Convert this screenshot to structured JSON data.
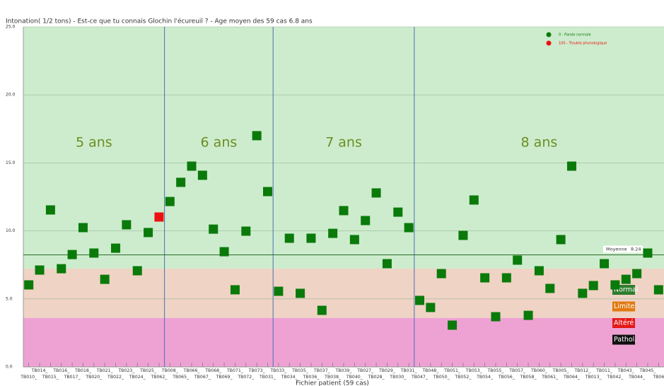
{
  "chart_data": {
    "type": "scatter",
    "title": "Intonation( 1/2 tons) - Est-ce que tu connais Glochin l'écureuil ? - Age moyen des 59 cas 6.8 ans",
    "x_label": "Fichier patient (59 cas)",
    "categories": [
      "TB010_",
      "TB014_",
      "TB015_",
      "TB016_",
      "TB017_",
      "TB018_",
      "TB020_",
      "TB021_",
      "TB022_",
      "TB023_",
      "TB024_",
      "TB025_",
      "TB062_",
      "TB008_",
      "TB065_",
      "TB066_",
      "TB067_",
      "TB068_",
      "TB069_",
      "TB071_",
      "TB072_",
      "TB073_",
      "TB031_",
      "TB033_",
      "TB034_",
      "TB035_",
      "TB036_",
      "TB037_",
      "TB038_",
      "TB039_",
      "TB040_",
      "TB027_",
      "TB028_",
      "TB029_",
      "TB030_",
      "TB031_",
      "TB047_",
      "TB048_",
      "TB050_",
      "TB051_",
      "TB052_",
      "TB053_",
      "TB054_",
      "TB055_",
      "TB056_",
      "TB057_",
      "TB058_",
      "TB060_",
      "TB061_",
      "TB005_",
      "TB064_",
      "TB012_",
      "TB013_",
      "TB011_",
      "TB042_",
      "TB043_",
      "TB044_",
      "TB045_",
      "TB06"
    ],
    "series": [
      {
        "name": "0 -  Parole normale",
        "color": "#0a7a0a",
        "values": [
          6.03,
          7.12,
          11.54,
          7.22,
          8.26,
          10.24,
          8.37,
          6.44,
          8.73,
          10.45,
          7.07,
          9.88,
          null,
          12.16,
          13.57,
          14.76,
          14.09,
          10.13,
          8.47,
          5.67,
          9.98,
          17.0,
          12.89,
          5.56,
          9.46,
          5.41,
          9.46,
          4.16,
          9.82,
          11.49,
          9.36,
          10.76,
          12.79,
          7.59,
          11.38,
          10.24,
          4.89,
          4.37,
          6.86,
          3.07,
          9.67,
          12.27,
          6.55,
          3.69,
          6.55,
          7.85,
          3.79,
          7.07,
          5.77,
          9.36,
          14.76,
          5.41,
          5.98,
          7.59,
          6.03,
          6.44,
          6.86,
          8.37,
          5.67
        ]
      },
      {
        "name": "100 -  Trouble phonologique",
        "color": "#ee1111",
        "values": [
          null,
          null,
          null,
          null,
          null,
          null,
          null,
          null,
          null,
          null,
          null,
          null,
          11.02,
          null,
          null,
          null,
          null,
          null,
          null,
          null,
          null,
          null,
          null,
          null,
          null,
          null,
          null,
          null,
          null,
          null,
          null,
          null,
          null,
          null,
          null,
          null,
          null,
          null,
          null,
          null,
          null,
          null,
          null,
          null,
          null,
          null,
          null,
          null,
          null,
          null,
          null,
          null,
          null,
          null,
          null,
          null,
          null,
          null,
          null
        ]
      }
    ],
    "ylim": [
      0,
      25
    ],
    "yticks": [
      {
        "value": 0,
        "label": "0.0"
      },
      {
        "value": 5,
        "label": "5.0"
      },
      {
        "value": 10,
        "label": "10.0"
      },
      {
        "value": 15,
        "label": "15.0"
      },
      {
        "value": 20,
        "label": "20.0"
      },
      {
        "value": 25,
        "label": "25.0"
      }
    ],
    "bands": [
      {
        "from": 7.22,
        "to": 25,
        "color": "#cdeccd"
      },
      {
        "from": 3.6,
        "to": 7.22,
        "color": "#efd3c4"
      },
      {
        "from": 0,
        "to": 3.6,
        "color": "#eea2d4"
      }
    ],
    "zone_labels": [
      {
        "label": "Normal",
        "color": "#2e7d2e"
      },
      {
        "label": "Limite",
        "color": "#e07a10"
      },
      {
        "label": "Altéré",
        "color": "#e41818"
      },
      {
        "label": "Pathol.",
        "color": "#111111"
      }
    ],
    "sections": [
      {
        "label": "5 ans",
        "count": 13
      },
      {
        "label": "6 ans",
        "count": 10
      },
      {
        "label": "7 ans",
        "count": 13
      },
      {
        "label": "8 ans",
        "count": 23
      }
    ],
    "mean": {
      "label": "Moyenne",
      "value": 8.24
    },
    "grid": true
  }
}
